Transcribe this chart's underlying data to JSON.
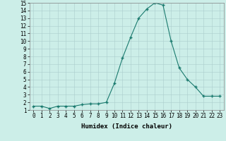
{
  "x": [
    0,
    1,
    2,
    3,
    4,
    5,
    6,
    7,
    8,
    9,
    10,
    11,
    12,
    13,
    14,
    15,
    16,
    17,
    18,
    19,
    20,
    21,
    22,
    23
  ],
  "y": [
    1.5,
    1.5,
    1.2,
    1.5,
    1.5,
    1.5,
    1.7,
    1.8,
    1.8,
    2.0,
    4.5,
    7.8,
    10.5,
    13.0,
    14.2,
    15.0,
    14.7,
    10.0,
    6.5,
    5.0,
    4.0,
    2.8,
    2.8,
    2.8
  ],
  "xlabel": "Humidex (Indice chaleur)",
  "ylim": [
    1,
    15
  ],
  "xlim_min": -0.5,
  "xlim_max": 23.5,
  "yticks": [
    1,
    2,
    3,
    4,
    5,
    6,
    7,
    8,
    9,
    10,
    11,
    12,
    13,
    14,
    15
  ],
  "xticks": [
    0,
    1,
    2,
    3,
    4,
    5,
    6,
    7,
    8,
    9,
    10,
    11,
    12,
    13,
    14,
    15,
    16,
    17,
    18,
    19,
    20,
    21,
    22,
    23
  ],
  "line_color": "#1a7a6e",
  "marker_color": "#1a7a6e",
  "bg_color": "#cceee8",
  "grid_color": "#aacccc",
  "xlabel_fontsize": 6.5,
  "tick_fontsize": 5.5
}
